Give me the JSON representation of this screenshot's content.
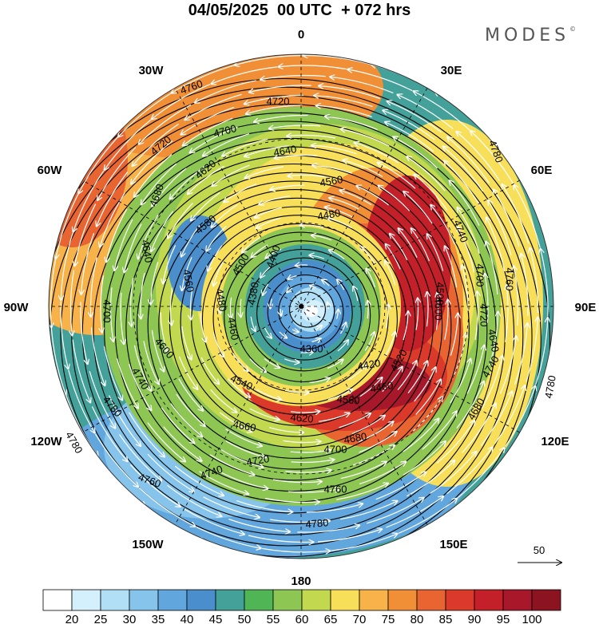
{
  "header": {
    "title": "04/05/2025  00 UTC  + 072 hrs",
    "brand": "MODES",
    "brand_mark": "©"
  },
  "longitudes": [
    "0",
    "30E",
    "60E",
    "90E",
    "120E",
    "150E",
    "180",
    "150W",
    "120W",
    "90W",
    "60W",
    "30W"
  ],
  "contour_labels": [
    "4360",
    "4380",
    "4400",
    "4420",
    "4460",
    "4480",
    "4500",
    "4520",
    "4540",
    "4560",
    "4580",
    "4600",
    "4620",
    "4640",
    "4660",
    "4680",
    "4700",
    "4720",
    "4740",
    "4760",
    "4780"
  ],
  "reference_vector": {
    "label": "50"
  },
  "colorbar": {
    "ticks": [
      "20",
      "25",
      "30",
      "35",
      "40",
      "45",
      "50",
      "55",
      "60",
      "65",
      "70",
      "75",
      "80",
      "85",
      "90",
      "95",
      "100"
    ],
    "colors": [
      "#ffffff",
      "#d4f0fc",
      "#b0dff6",
      "#86c4ec",
      "#62a6de",
      "#4a8ecc",
      "#43a19a",
      "#4fb555",
      "#8dc653",
      "#c2d84f",
      "#f8df5a",
      "#f7b24a",
      "#f08f36",
      "#e86532",
      "#db3a2a",
      "#c4202a",
      "#a6182a",
      "#8c1420"
    ]
  },
  "colors": {
    "wind_arrows": "#ffffff",
    "contours": "#000000",
    "graticule": "#000000"
  }
}
